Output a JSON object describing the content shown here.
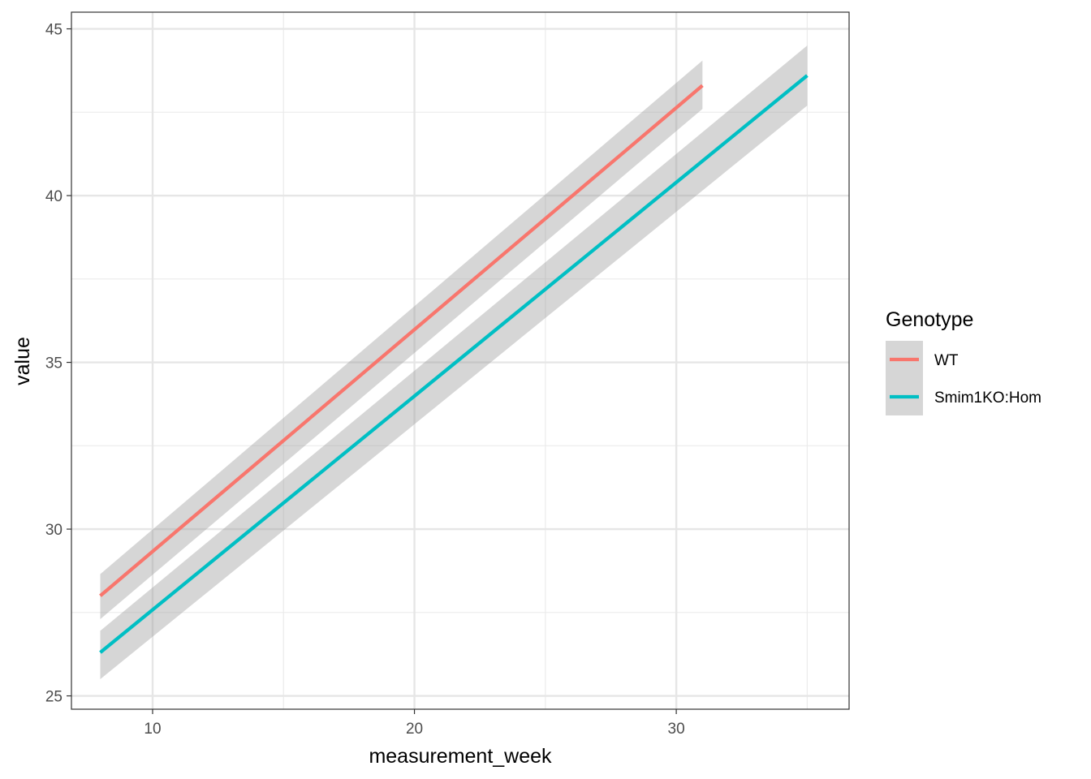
{
  "chart_data": {
    "type": "line",
    "title": "",
    "xlabel": "measurement_week",
    "ylabel": "value",
    "xlim": [
      6.9,
      36.6
    ],
    "ylim": [
      24.6,
      45.5
    ],
    "x_ticks": [
      10,
      20,
      30
    ],
    "y_ticks": [
      25,
      30,
      35,
      40,
      45
    ],
    "x_minor_ticks": [
      15,
      25,
      35
    ],
    "y_minor_ticks": [
      27.5,
      32.5,
      37.5,
      42.5
    ],
    "grid": true,
    "legend_position": "right",
    "legend_title": "Genotype",
    "series": [
      {
        "name": "WT",
        "color": "#F8766D",
        "x": [
          8,
          31
        ],
        "y": [
          28.0,
          43.3
        ],
        "ci_lower": [
          27.3,
          42.6
        ],
        "ci_upper": [
          28.65,
          44.05
        ]
      },
      {
        "name": "Smim1KO:Hom",
        "color": "#00BFC4",
        "x": [
          8,
          35
        ],
        "y": [
          26.3,
          43.6
        ],
        "ci_lower": [
          25.5,
          42.7
        ],
        "ci_upper": [
          26.95,
          44.5
        ]
      }
    ],
    "ribbon_color": "#999999"
  }
}
